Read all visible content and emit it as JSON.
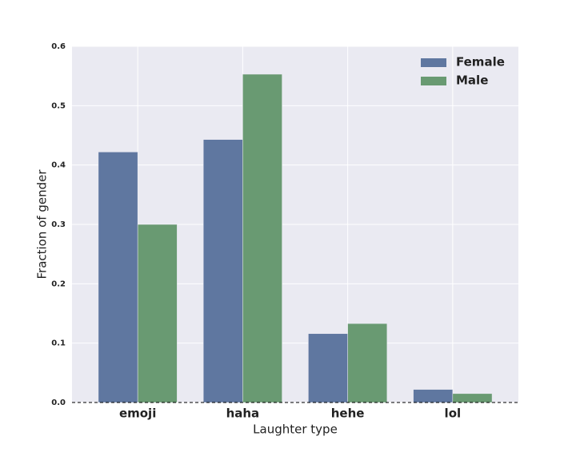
{
  "chart_data": {
    "type": "bar",
    "x_label": "Laughter type",
    "y_label": "Fraction of gender",
    "categories": [
      "emoji",
      "haha",
      "hehe",
      "lol"
    ],
    "series": [
      {
        "name": "Female",
        "color": "#5f77a0",
        "values": [
          0.422,
          0.443,
          0.116,
          0.022
        ]
      },
      {
        "name": "Male",
        "color": "#699a72",
        "values": [
          0.3,
          0.553,
          0.133,
          0.015
        ]
      }
    ],
    "ylim": [
      0,
      0.6
    ],
    "yticks": [
      {
        "value": 0,
        "label": "0.0"
      },
      0.1,
      0.2,
      0.3,
      0.4,
      0.5,
      0.6
    ],
    "grid": true,
    "legend": "upper right"
  }
}
